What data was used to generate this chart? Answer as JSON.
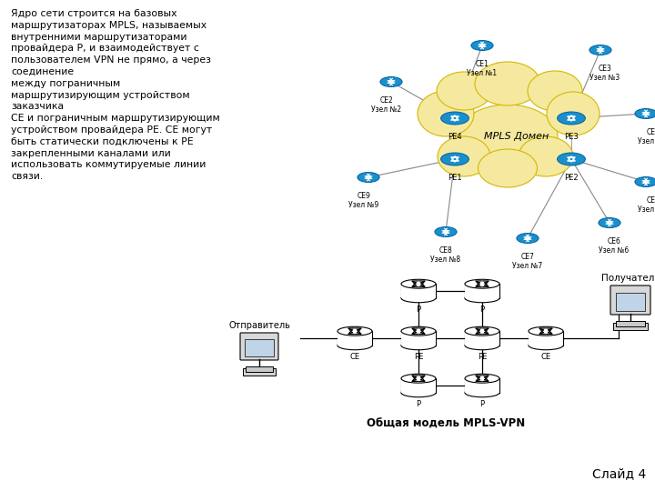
{
  "text_content": "Ядро сети строится на базовых\nмаршрутизаторах MPLS, называемых\nвнутренними маршрутизаторами\nпровайдера P, и взаимодействует с\nпользователем VPN не прямо, а через\nсоединение\nмежду пограничным\nмаршрутизирующим устройством\nзаказчика\nCE и пограничным маршрутизирующим\nустройством провайдера PE. CE могут\nбыть статически подключены к PE\nзакрепленными каналами или\nиспользовать коммутируемые линии\nсвязи.",
  "slide_label": "Слайд 4",
  "bottom_caption": "Общая модель MPLS-VPN",
  "sender_label": "Отправитель",
  "receiver_label": "Получатель",
  "mpls_domain_label": "MPLS Домен",
  "background_color": "#ffffff",
  "text_color": "#000000",
  "cloud_fill": "#f5e9a0",
  "cloud_edge": "#d4b800",
  "router_blue": "#1a8fcc",
  "line_color": "#888888"
}
